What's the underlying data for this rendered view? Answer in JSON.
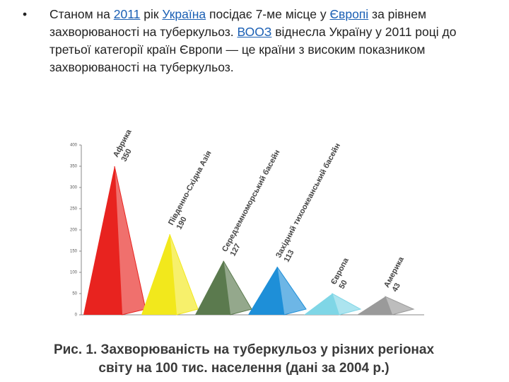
{
  "bullet": "•",
  "paragraph": [
    {
      "text": "Станом на ",
      "link": false
    },
    {
      "text": "2011",
      "link": true
    },
    {
      "text": " рік ",
      "link": false
    },
    {
      "text": "Україна",
      "link": true
    },
    {
      "text": " посідає 7-ме місце у ",
      "link": false
    },
    {
      "text": "Європі",
      "link": true
    },
    {
      "text": " за рівнем захворюваності на туберкульоз. ",
      "link": false
    },
    {
      "text": "ВООЗ",
      "link": true
    },
    {
      "text": " віднесла Україну у 2011 році до третьої категорії країн Європи — це країни з високим показником захворюваності на туберкульоз.",
      "link": false
    }
  ],
  "chart_data": {
    "type": "pyramid",
    "categories": [
      "Африка",
      "Південно-Східна Азія",
      "Середземноморський басейн",
      "Західний тихоокеанський басейн",
      "Європа",
      "Америка"
    ],
    "values": [
      350,
      190,
      127,
      113,
      50,
      43
    ],
    "colors": [
      "#e8231f",
      "#f2e81c",
      "#5b7a4e",
      "#1e8fd8",
      "#7fd6e6",
      "#9a9a9a"
    ],
    "ylim": [
      0,
      400
    ],
    "yticks": [
      0,
      50,
      100,
      150,
      200,
      250,
      300,
      350,
      400
    ],
    "grid": false,
    "caption": [
      "Рис. 1. Захворюваність на туберкульоз у різних регіонах",
      "світу на 100 тис. населення (дані за 2004 р.)"
    ]
  }
}
